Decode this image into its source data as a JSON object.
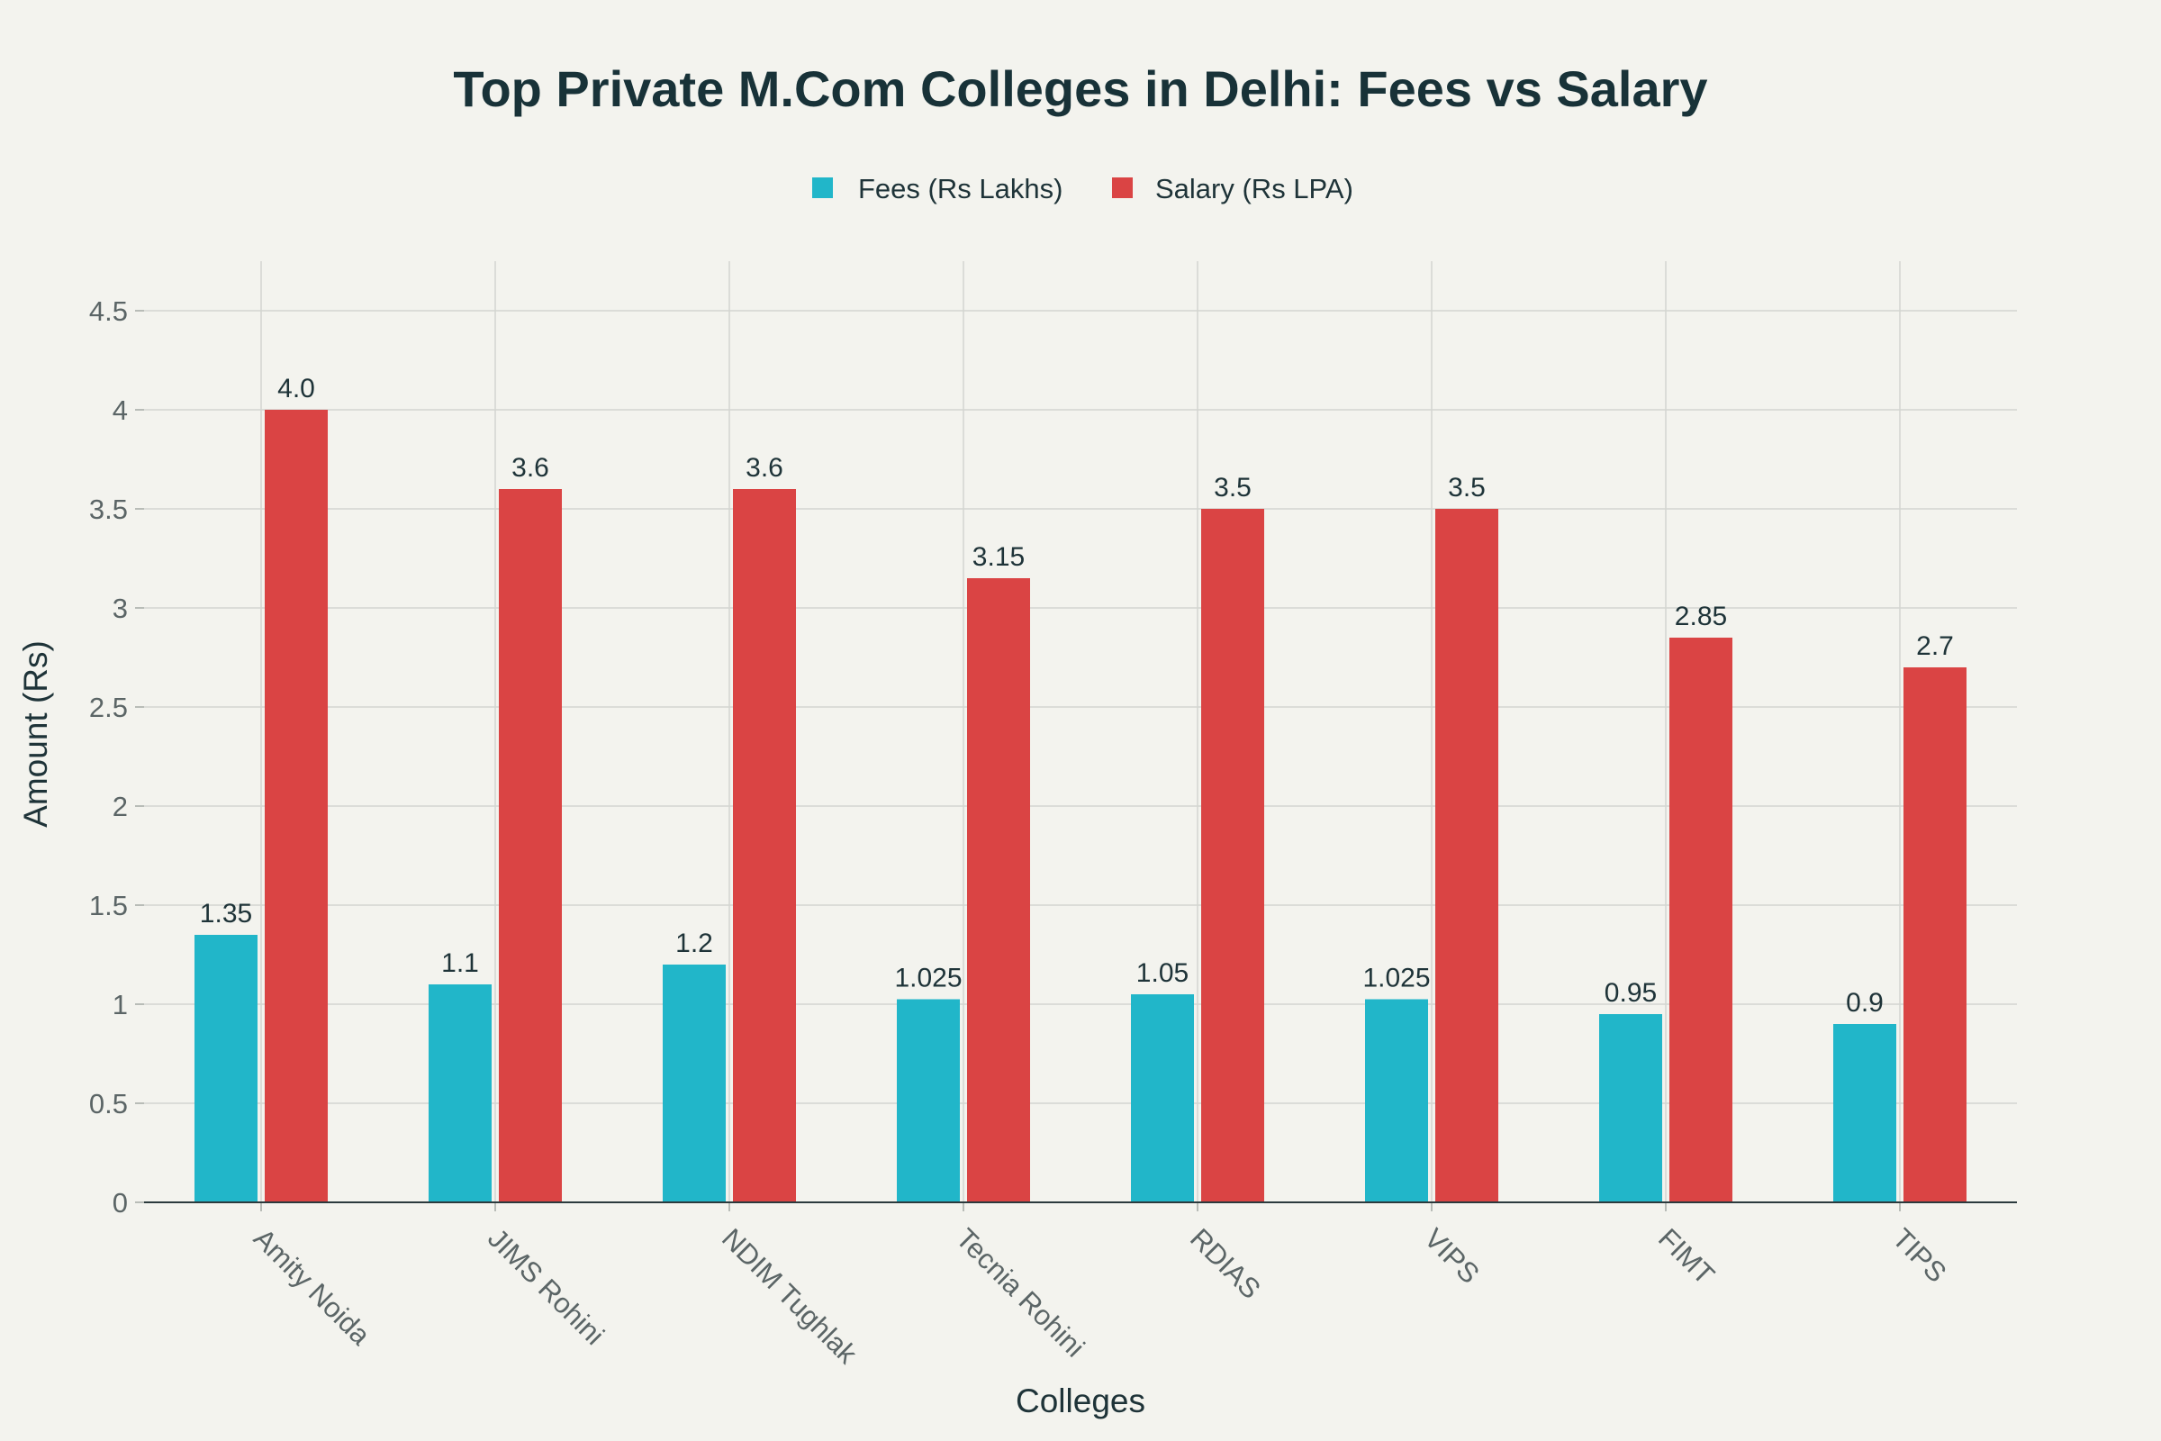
{
  "chart_data": {
    "type": "bar",
    "title": "Top Private M.Com Colleges in Delhi: Fees vs Salary",
    "xlabel": "Colleges",
    "ylabel": "Amount (Rs)",
    "categories": [
      "Amity Noida",
      "JIMS Rohini",
      "NDIM Tughlak",
      "Tecnia Rohini",
      "RDIAS",
      "VIPS",
      "FIMT",
      "TIPS"
    ],
    "series": [
      {
        "name": "Fees (Rs Lakhs)",
        "color": "#21b6c9",
        "values": [
          1.35,
          1.1,
          1.2,
          1.025,
          1.05,
          1.025,
          0.95,
          0.9
        ],
        "labels": [
          "1.35",
          "1.1",
          "1.2",
          "1.025",
          "1.05",
          "1.025",
          "0.95",
          "0.9"
        ]
      },
      {
        "name": "Salary (Rs LPA)",
        "color": "#da4444",
        "values": [
          4.0,
          3.6,
          3.6,
          3.15,
          3.5,
          3.5,
          2.85,
          2.7
        ],
        "labels": [
          "4.0",
          "3.6",
          "3.6",
          "3.15",
          "3.5",
          "3.5",
          "2.85",
          "2.7"
        ]
      }
    ],
    "ylim": [
      0,
      4.75
    ],
    "yticks": [
      0,
      0.5,
      1,
      1.5,
      2,
      2.5,
      3,
      3.5,
      4,
      4.5
    ],
    "ytick_labels": [
      "0",
      "0.5",
      "1",
      "1.5",
      "2",
      "2.5",
      "3",
      "3.5",
      "4",
      "4.5"
    ],
    "grid": true,
    "legend_position": "top-center"
  }
}
